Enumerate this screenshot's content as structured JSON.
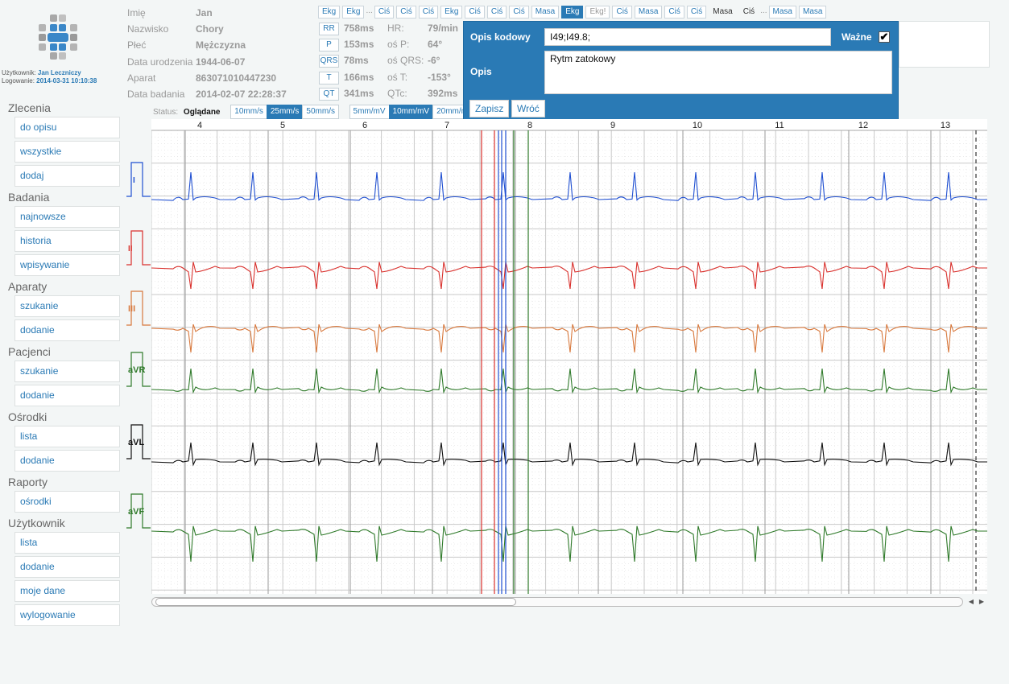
{
  "user": {
    "label": "Użytkownik:",
    "name": "Jan Leczniczy",
    "login_label": "Logowanie:",
    "login_time": "2014-03-31 10:10:38"
  },
  "sidebar": [
    {
      "title": "Zlecenia",
      "items": [
        "do opisu",
        "wszystkie",
        "dodaj"
      ]
    },
    {
      "title": "Badania",
      "items": [
        "najnowsze",
        "historia",
        "wpisywanie"
      ]
    },
    {
      "title": "Aparaty",
      "items": [
        "szukanie",
        "dodanie"
      ]
    },
    {
      "title": "Pacjenci",
      "items": [
        "szukanie",
        "dodanie"
      ]
    },
    {
      "title": "Ośrodki",
      "items": [
        "lista",
        "dodanie"
      ]
    },
    {
      "title": "Raporty",
      "items": [
        "ośrodki"
      ]
    },
    {
      "title": "Użytkownik",
      "items": [
        "lista",
        "dodanie",
        "moje dane",
        "wylogowanie"
      ]
    }
  ],
  "patient": [
    {
      "label": "Imię",
      "value": "Jan"
    },
    {
      "label": "Nazwisko",
      "value": "Chory"
    },
    {
      "label": "Płeć",
      "value": "Mężczyzna"
    },
    {
      "label": "Data urodzenia",
      "value": "1944-06-07"
    },
    {
      "label": "Aparat",
      "value": "863071010447230"
    },
    {
      "label": "Data badania",
      "value": "2014-02-07 22:28:37"
    }
  ],
  "measurements": [
    {
      "btn": "RR",
      "value": "758ms",
      "label": "HR:",
      "value2": "79/min"
    },
    {
      "btn": "P",
      "value": "153ms",
      "label": "oś P:",
      "value2": "64°"
    },
    {
      "btn": "QRS",
      "value": "78ms",
      "label": "oś QRS:",
      "value2": "-6°"
    },
    {
      "btn": "T",
      "value": "166ms",
      "label": "oś T:",
      "value2": "-153°"
    },
    {
      "btn": "QT",
      "value": "341ms",
      "label": "QTc:",
      "value2": "392ms"
    }
  ],
  "tags": [
    {
      "t": "Ekg",
      "s": ""
    },
    {
      "t": "Ekg",
      "s": ""
    },
    {
      "t": "...",
      "s": "sep"
    },
    {
      "t": "Ciś",
      "s": ""
    },
    {
      "t": "Ciś",
      "s": ""
    },
    {
      "t": "Ciś",
      "s": ""
    },
    {
      "t": "Ekg",
      "s": ""
    },
    {
      "t": "Ciś",
      "s": ""
    },
    {
      "t": "Ciś",
      "s": ""
    },
    {
      "t": "Ciś",
      "s": ""
    },
    {
      "t": "Masa",
      "s": ""
    },
    {
      "t": "Ekg",
      "s": "active"
    },
    {
      "t": "Ekg!",
      "s": "gray"
    },
    {
      "t": "Ciś",
      "s": ""
    },
    {
      "t": "Masa",
      "s": ""
    },
    {
      "t": "Ciś",
      "s": ""
    },
    {
      "t": "Ciś",
      "s": ""
    },
    {
      "t": "Masa",
      "s": "plain"
    },
    {
      "t": "Ciś",
      "s": "plain"
    },
    {
      "t": "...",
      "s": "sep"
    },
    {
      "t": "Masa",
      "s": ""
    },
    {
      "t": "Masa",
      "s": ""
    }
  ],
  "status": {
    "label": "Status:",
    "value": "Oglądane"
  },
  "speed_buttons": [
    {
      "label": "10mm/s",
      "active": false
    },
    {
      "label": "25mm/s",
      "active": true
    },
    {
      "label": "50mm/s",
      "active": false
    }
  ],
  "gain_buttons": [
    {
      "label": "5mm/mV",
      "active": false
    },
    {
      "label": "10mm/mV",
      "active": true
    },
    {
      "label": "20mm/mV",
      "active": false
    }
  ],
  "dialog": {
    "code_label": "Opis kodowy",
    "code_value": "I49;I49.8;",
    "important_label": "Ważne",
    "important_checked": true,
    "desc_label": "Opis",
    "desc_value": "Rytm zatokowy",
    "save_label": "Zapisz",
    "back_label": "Wróć"
  },
  "ecg": {
    "time_labels": [
      "4",
      "5",
      "6",
      "7",
      "8",
      "9",
      "10",
      "11",
      "12",
      "13"
    ],
    "leads": [
      {
        "name": "I",
        "color": "#1f4fd1"
      },
      {
        "name": "II",
        "color": "#d9302c"
      },
      {
        "name": "III",
        "color": "#d8783c"
      },
      {
        "name": "aVR",
        "color": "#2f7a2a"
      },
      {
        "name": "aVL",
        "color": "#111111"
      },
      {
        "name": "aVF",
        "color": "#2f7a2a"
      }
    ]
  },
  "colors": {
    "accent": "#2a7ab5",
    "grid_major": "#c9c9c9",
    "grid_minor": "#e2e2e2"
  }
}
